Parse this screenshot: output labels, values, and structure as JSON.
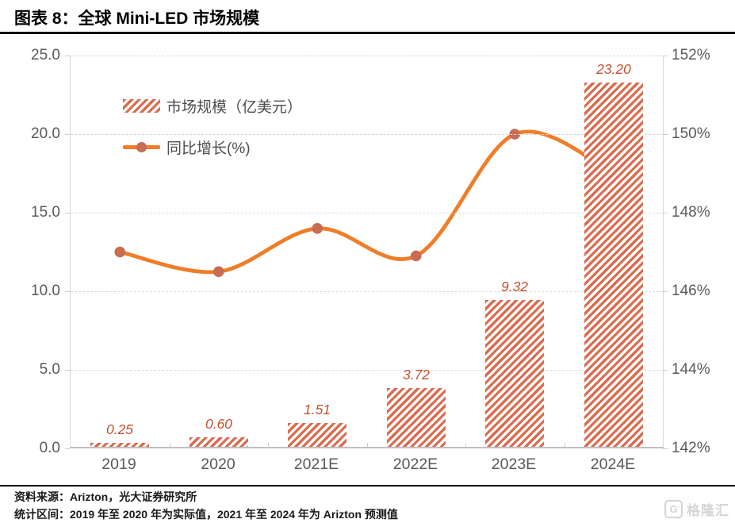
{
  "header": {
    "title": "图表 8：全球 Mini-LED 市场规模"
  },
  "footer": {
    "source": "资料来源：Arizton，光大证券研究所",
    "note": "统计区间：2019 年至 2020 年为实际值，2021 年至 2024 年为 Arizton 预测值",
    "logo_text": "格隆汇",
    "logo_icon_glyph": "G"
  },
  "chart_data": {
    "type": "combo-bar-line",
    "categories": [
      "2019",
      "2020",
      "2021E",
      "2022E",
      "2023E",
      "2024E"
    ],
    "series": [
      {
        "name": "市场规模（亿美元）",
        "type": "bar",
        "axis": "left",
        "values": [
          0.25,
          0.6,
          1.51,
          3.72,
          9.32,
          23.2
        ],
        "labels": [
          "0.25",
          "0.60",
          "1.51",
          "3.72",
          "9.32",
          "23.20"
        ]
      },
      {
        "name": "同比增长(%)",
        "type": "line",
        "axis": "right",
        "values": [
          147.0,
          146.5,
          147.6,
          146.9,
          150.0,
          149.0
        ]
      }
    ],
    "left_axis": {
      "ticks": [
        "25.0",
        "20.0",
        "15.0",
        "10.0",
        "5.0",
        "0.0"
      ],
      "min": 0,
      "max": 25
    },
    "right_axis": {
      "ticks": [
        "152%",
        "150%",
        "148%",
        "146%",
        "144%",
        "142%"
      ],
      "min": 142,
      "max": 152
    },
    "legend": [
      {
        "label": "市场规模（亿美元）",
        "swatch": "hatch"
      },
      {
        "label": "同比增长(%)",
        "swatch": "line-dot"
      }
    ],
    "legend_position": "inside-top-left",
    "grid": "dashed-horizontal",
    "colors": {
      "bar": "#DA6C4F",
      "line": "#F07D27",
      "marker": "#C86C52",
      "bar_label": "#C6502F"
    }
  }
}
